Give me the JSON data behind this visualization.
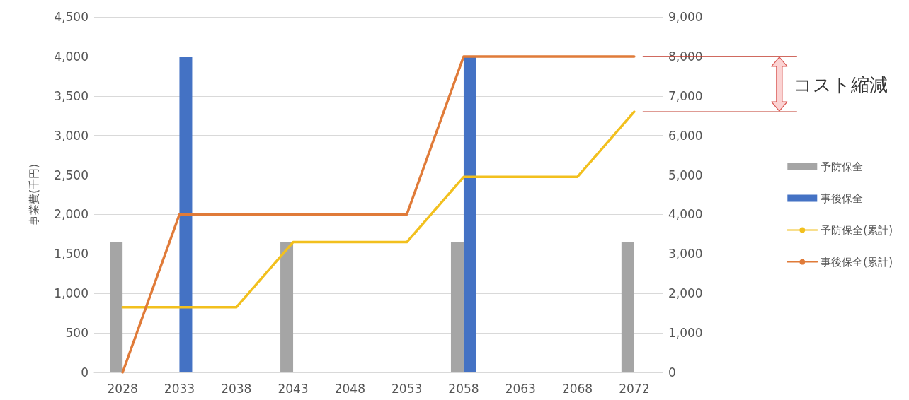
{
  "chart_data": {
    "type": "bar",
    "ylabel": "事業費(千円)",
    "categories": [
      "2028",
      "2033",
      "2038",
      "2043",
      "2048",
      "2053",
      "2058",
      "2063",
      "2068",
      "2072"
    ],
    "series": [
      {
        "name": "予防保全",
        "color": "#a5a5a5",
        "values": [
          1650,
          null,
          null,
          1650,
          null,
          null,
          1650,
          null,
          null,
          1650
        ]
      },
      {
        "name": "事後保全",
        "color": "#4472c4",
        "values": [
          null,
          4000,
          null,
          null,
          null,
          null,
          4000,
          null,
          null,
          null
        ]
      },
      {
        "name": "予防保全(累計)",
        "type": "line",
        "axis": "y2",
        "color": "#f2c01e",
        "values": [
          1650,
          1650,
          1650,
          3300,
          3300,
          3300,
          4950,
          4950,
          4950,
          6600
        ]
      },
      {
        "name": "事後保全(累計)",
        "type": "line",
        "axis": "y2",
        "color": "#e07b39",
        "values": [
          0,
          4000,
          4000,
          4000,
          4000,
          4000,
          8000,
          8000,
          8000,
          8000
        ]
      }
    ],
    "ylim": [
      0,
      4500
    ],
    "yticks": [
      0,
      500,
      {
        "value": 1000,
        "label": "1,000"
      },
      {
        "value": 1500,
        "label": "1,500"
      },
      {
        "value": 2000,
        "label": "2,000"
      },
      {
        "value": 2500,
        "label": "2,500"
      },
      {
        "value": 3000,
        "label": "3,000"
      },
      {
        "value": 3500,
        "label": "3,500"
      },
      {
        "value": 4000,
        "label": "4,000"
      },
      {
        "value": 4500,
        "label": "4,500"
      }
    ],
    "y2lim": [
      0,
      9000
    ],
    "y2ticks": [
      0,
      {
        "value": 1000,
        "label": "1,000"
      },
      {
        "value": 2000,
        "label": "2,000"
      },
      {
        "value": 3000,
        "label": "3,000"
      },
      {
        "value": 4000,
        "label": "4,000"
      },
      {
        "value": 5000,
        "label": "5,000"
      },
      {
        "value": 6000,
        "label": "6,000"
      },
      {
        "value": 7000,
        "label": "7,000"
      },
      {
        "value": 8000,
        "label": "8,000"
      },
      {
        "value": 9000,
        "label": "9,000"
      }
    ],
    "annotations": [
      "コスト縮減"
    ],
    "grid": "y",
    "legend": "right",
    "marker": "none",
    "line_style": "solid"
  }
}
